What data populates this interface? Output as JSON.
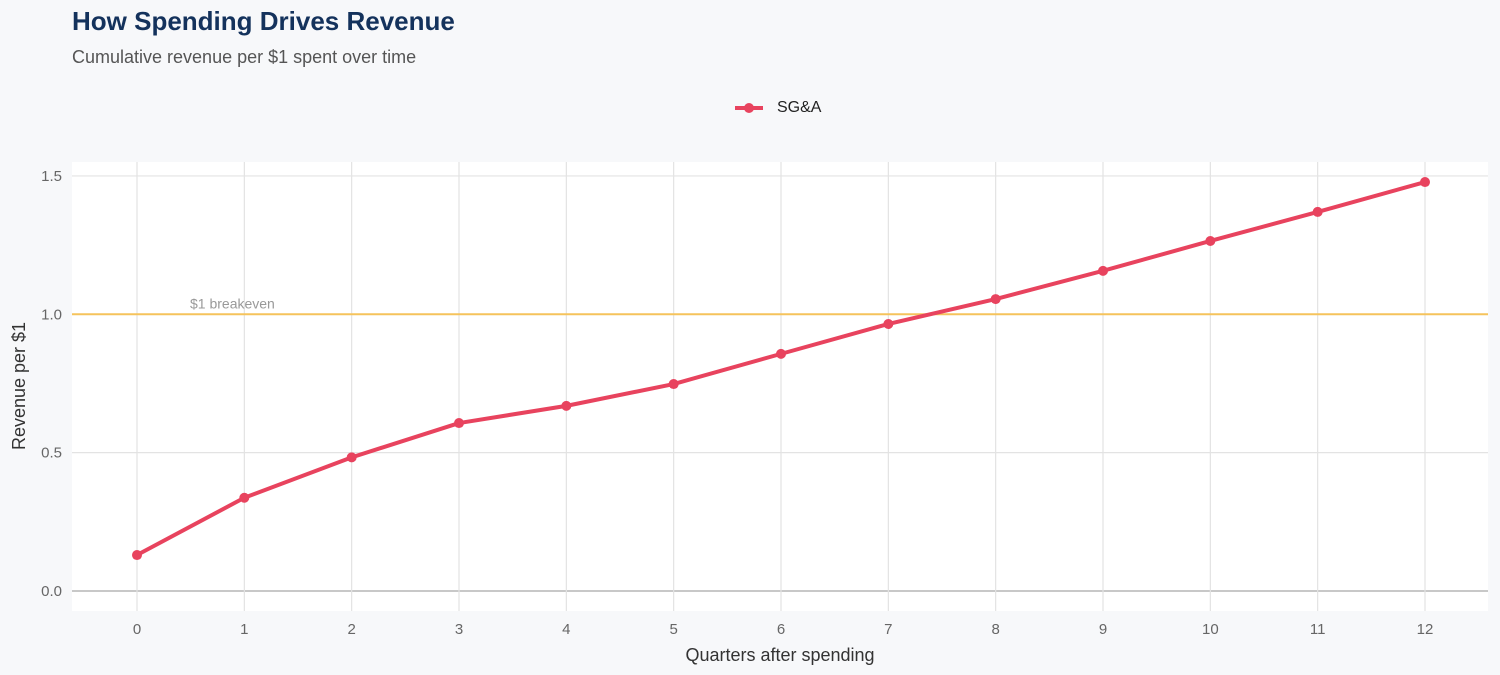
{
  "header": {
    "title": "How Spending Drives Revenue",
    "subtitle": "Cumulative revenue per $1 spent over time"
  },
  "chart_data": {
    "type": "line",
    "title": "How Spending Drives Revenue",
    "subtitle": "Cumulative revenue per $1 spent over time",
    "xlabel": "Quarters after spending",
    "ylabel": "Revenue per $1",
    "x": [
      0,
      1,
      2,
      3,
      4,
      5,
      6,
      7,
      8,
      9,
      10,
      11,
      12
    ],
    "series": [
      {
        "name": "SG&A",
        "color": "#e8435e",
        "values": [
          0.13,
          0.337,
          0.483,
          0.607,
          0.669,
          0.748,
          0.857,
          0.965,
          1.055,
          1.157,
          1.265,
          1.37,
          1.478
        ]
      }
    ],
    "xlim": [
      -0.6,
      12.6
    ],
    "ylim": [
      -0.07,
      1.55
    ],
    "yticks": [
      0.0,
      0.5,
      1.0,
      1.5
    ],
    "ytick_labels": [
      "0.0",
      "0.5",
      "1.0",
      "1.5"
    ],
    "xtick_labels": [
      "0",
      "1",
      "2",
      "3",
      "4",
      "5",
      "6",
      "7",
      "8",
      "9",
      "10",
      "11",
      "12"
    ],
    "reference_line": {
      "y": 1.0,
      "label": "$1 breakeven",
      "color": "#f5c35c"
    },
    "grid": true,
    "legend": "top-center"
  }
}
